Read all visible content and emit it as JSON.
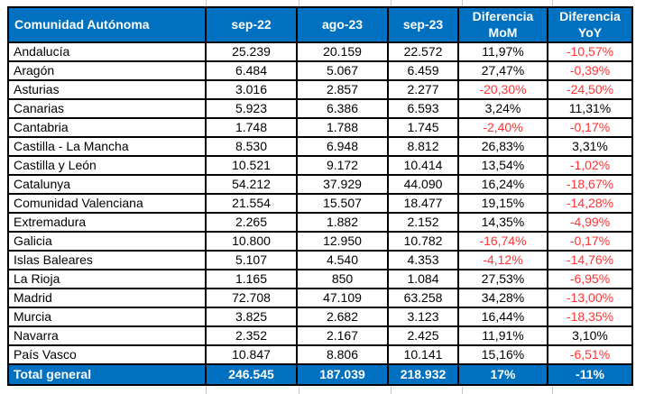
{
  "colors": {
    "header_bg": "#0070C0",
    "header_text": "#FFFFFF",
    "grid_border": "#000000",
    "negative_value": "#FF3333",
    "positive_value": "#000000"
  },
  "chart_data": {
    "type": "table",
    "title": "",
    "columns": [
      "Comunidad Autónoma",
      "sep-22",
      "ago-23",
      "sep-23",
      "Diferencia MoM",
      "Diferencia YoY"
    ],
    "rows": [
      [
        "Andalucía",
        "25.239",
        "20.159",
        "22.572",
        "11,97%",
        "-10,57%"
      ],
      [
        "Aragón",
        "6.484",
        "5.067",
        "6.459",
        "27,47%",
        "-0,39%"
      ],
      [
        "Asturias",
        "3.016",
        "2.857",
        "2.277",
        "-20,30%",
        "-24,50%"
      ],
      [
        "Canarias",
        "5.923",
        "6.386",
        "6.593",
        "3,24%",
        "11,31%"
      ],
      [
        "Cantabria",
        "1.748",
        "1.788",
        "1.745",
        "-2,40%",
        "-0,17%"
      ],
      [
        "Castilla - La Mancha",
        "8.530",
        "6.948",
        "8.812",
        "26,83%",
        "3,31%"
      ],
      [
        "Castilla y León",
        "10.521",
        "9.172",
        "10.414",
        "13,54%",
        "-1,02%"
      ],
      [
        "Catalunya",
        "54.212",
        "37.929",
        "44.090",
        "16,24%",
        "-18,67%"
      ],
      [
        "Comunidad Valenciana",
        "21.554",
        "15.507",
        "18.477",
        "19,15%",
        "-14,28%"
      ],
      [
        "Extremadura",
        "2.265",
        "1.882",
        "2.152",
        "14,35%",
        "-4,99%"
      ],
      [
        "Galicia",
        "10.800",
        "12.950",
        "10.782",
        "-16,74%",
        "-0,17%"
      ],
      [
        "Islas Baleares",
        "5.107",
        "4.540",
        "4.353",
        "-4,12%",
        "-14,76%"
      ],
      [
        "La Rioja",
        "1.165",
        "850",
        "1.084",
        "27,53%",
        "-6,95%"
      ],
      [
        "Madrid",
        "72.708",
        "47.109",
        "63.258",
        "34,28%",
        "-13,00%"
      ],
      [
        "Murcia",
        "3.825",
        "2.682",
        "3.123",
        "16,44%",
        "-18,35%"
      ],
      [
        "Navarra",
        "2.352",
        "2.167",
        "2.425",
        "11,91%",
        "3,10%"
      ],
      [
        "País Vasco",
        "10.847",
        "8.806",
        "10.141",
        "15,16%",
        "-6,51%"
      ]
    ],
    "total_row": [
      "Total general",
      "246.545",
      "187.039",
      "218.932",
      "17%",
      "-11%"
    ],
    "notes": "Negative percentage values shown in red; totals row and header on blue background with white text"
  }
}
